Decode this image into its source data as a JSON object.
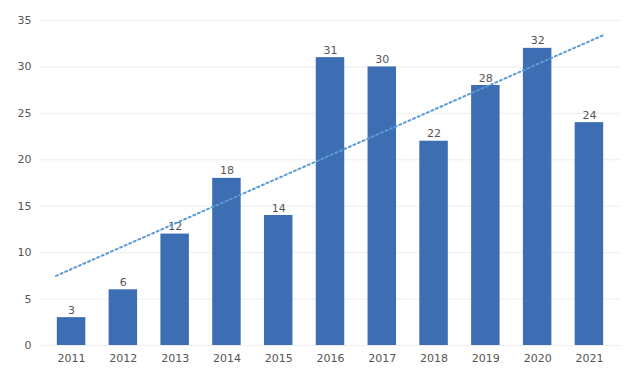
{
  "chart_data": {
    "type": "bar",
    "categories": [
      "2011",
      "2012",
      "2013",
      "2014",
      "2015",
      "2016",
      "2017",
      "2018",
      "2019",
      "2020",
      "2021"
    ],
    "values": [
      3,
      6,
      12,
      18,
      14,
      31,
      30,
      22,
      28,
      32,
      24
    ],
    "color": "#3d6eb3",
    "ylim": [
      0,
      35
    ],
    "yticks": [
      0,
      5,
      10,
      15,
      20,
      25,
      30,
      35
    ],
    "grid": true,
    "data_labels": true,
    "trendline": {
      "values": [
        7.5,
        33.5
      ],
      "color": "#5b9bd5",
      "line_style": "dotted"
    }
  }
}
